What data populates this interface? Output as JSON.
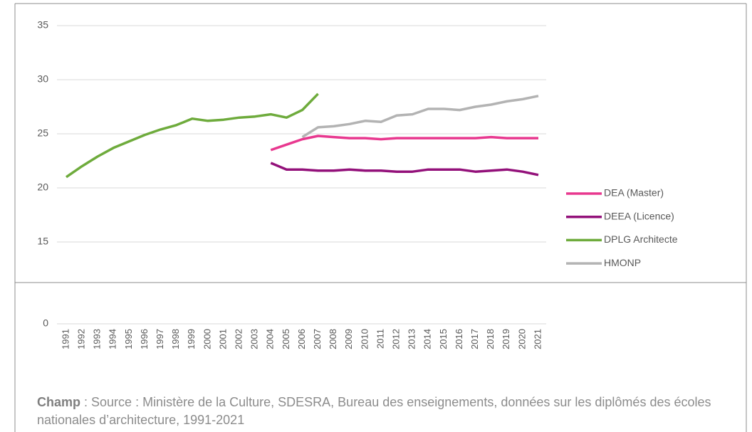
{
  "chart_data": {
    "type": "line",
    "categories": [
      "1991",
      "1992",
      "1993",
      "1994",
      "1995",
      "1996",
      "1997",
      "1998",
      "1999",
      "2000",
      "2001",
      "2002",
      "2003",
      "2004",
      "2005",
      "2006",
      "2007",
      "2008",
      "2009",
      "2010",
      "2011",
      "2012",
      "2013",
      "2014",
      "2015",
      "2016",
      "2017",
      "2018",
      "2019",
      "2020",
      "2021"
    ],
    "series": [
      {
        "name": "DEA (Master)",
        "color": "#e8388f",
        "values": [
          null,
          null,
          null,
          null,
          null,
          null,
          null,
          null,
          null,
          null,
          null,
          null,
          null,
          23.5,
          24.0,
          24.5,
          24.8,
          24.7,
          24.6,
          24.6,
          24.5,
          24.6,
          24.6,
          24.6,
          24.6,
          24.6,
          24.6,
          24.7,
          24.6,
          24.6,
          24.6
        ]
      },
      {
        "name": "DEEA (Licence)",
        "color": "#93117a",
        "values": [
          null,
          null,
          null,
          null,
          null,
          null,
          null,
          null,
          null,
          null,
          null,
          null,
          null,
          22.3,
          21.7,
          21.7,
          21.6,
          21.6,
          21.7,
          21.6,
          21.6,
          21.5,
          21.5,
          21.7,
          21.7,
          21.7,
          21.5,
          21.6,
          21.7,
          21.5,
          21.2
        ]
      },
      {
        "name": "DPLG Architecte",
        "color": "#6eab3c",
        "values": [
          21.0,
          22.0,
          22.9,
          23.7,
          24.3,
          24.9,
          25.4,
          25.8,
          26.4,
          26.2,
          26.3,
          26.5,
          26.6,
          26.8,
          26.5,
          27.2,
          28.7,
          null,
          null,
          null,
          null,
          null,
          null,
          null,
          null,
          null,
          null,
          null,
          null,
          null,
          null
        ]
      },
      {
        "name": "HMONP",
        "color": "#b3b3b3",
        "values": [
          null,
          null,
          null,
          null,
          null,
          null,
          null,
          null,
          null,
          null,
          null,
          null,
          null,
          null,
          null,
          24.7,
          25.6,
          25.7,
          25.9,
          26.2,
          26.1,
          26.7,
          26.8,
          27.3,
          27.3,
          27.2,
          27.5,
          27.7,
          28.0,
          28.2,
          28.5
        ]
      }
    ],
    "ylim": [
      0,
      35
    ],
    "axis_break": [
      0,
      15
    ],
    "yticks": [
      0,
      15,
      20,
      25,
      30,
      35
    ],
    "grid": true,
    "legend": "right",
    "source_label": "Champ",
    "source": ": Source : Ministère de la Culture, SDESRA, Bureau des enseignements, données sur les diplômés des écoles nationales d’architecture, 1991-2021"
  }
}
